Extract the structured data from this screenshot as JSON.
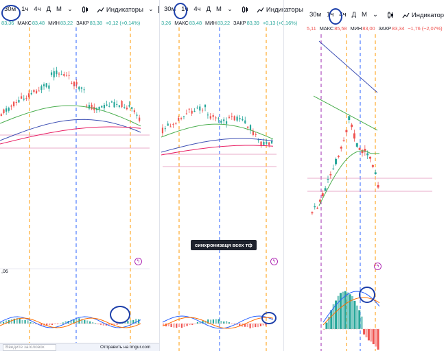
{
  "panels": [
    {
      "id": "p1",
      "timeframes": [
        "30м",
        "1ч",
        "4ч",
        "Д",
        "М"
      ],
      "indicators_label": "Индикаторы",
      "ohlc": {
        "open": "83,36",
        "high_label": "МАКС",
        "high": "83,48",
        "low_label": "МИН",
        "low": "83,22",
        "close_label": "ЗАКР",
        "close": "83,38",
        "change": "+0,12 (+0,14%)"
      },
      "indicator_value": ",06"
    },
    {
      "id": "p2",
      "timeframes": [
        "30м",
        "1ч",
        "4ч",
        "Д",
        "М"
      ],
      "indicators_label": "Индикаторы",
      "ohlc": {
        "open": "3,26",
        "high_label": "МАКС",
        "high": "83,48",
        "low_label": "МИН",
        "low": "83,22",
        "close_label": "ЗАКР",
        "close": "83,39",
        "change": "+0,13 (+0,16%)"
      }
    },
    {
      "id": "p3",
      "timeframes": [
        "30м",
        "1ч",
        "4ч",
        "Д",
        "М"
      ],
      "indicators_label": "Индикатор",
      "ohlc": {
        "open": "5,11",
        "high_label": "МАКС",
        "high": "85,58",
        "low_label": "МИН",
        "low": "83,00",
        "close_label": "ЗАКР",
        "close": "83,34",
        "change": "−1,76 (−2,07%)"
      }
    }
  ],
  "tooltip": "синхронизаця всех тф",
  "bottom_bar": {
    "input_placeholder": "Введите заголовок",
    "send_label": "Отправить на Imgur.com"
  },
  "colors": {
    "up": "#26a69a",
    "down": "#ef5350",
    "blue_marker": "#2962ff",
    "orange_marker": "#ff9800",
    "ma_green": "#4caf50",
    "ma_blue": "#3f51b5",
    "ma_red": "#e91e63",
    "circle": "#1c3faa"
  }
}
